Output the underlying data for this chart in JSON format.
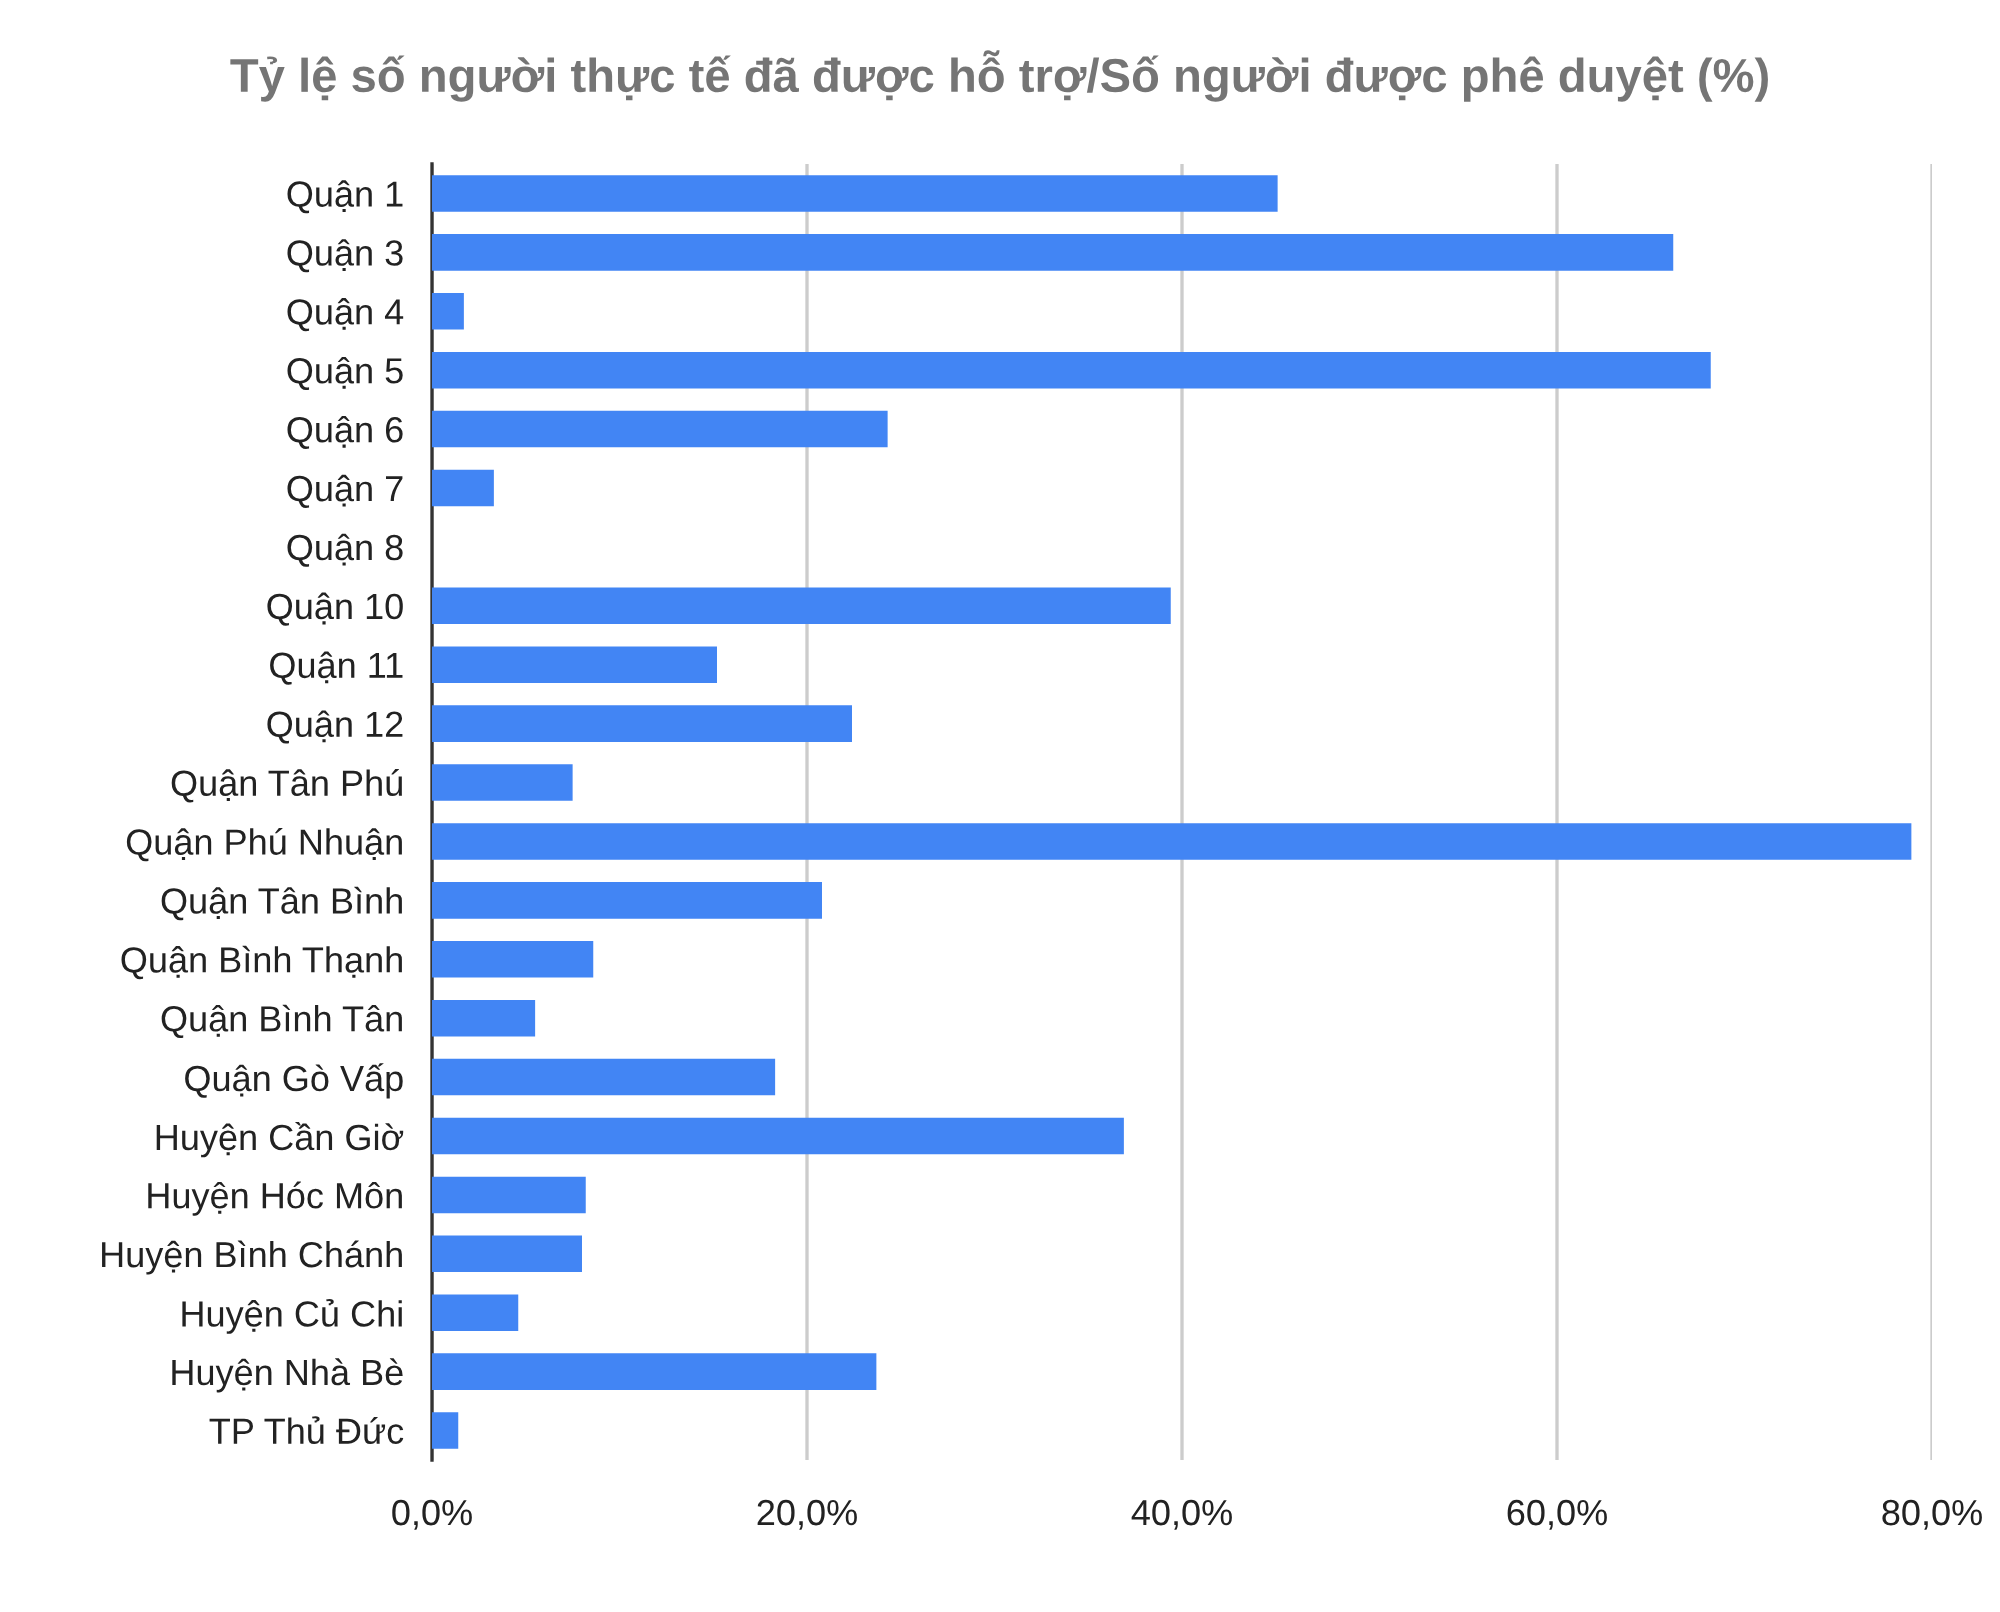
{
  "chart_data": {
    "type": "bar",
    "orientation": "horizontal",
    "title": "Tỷ lệ số người thực tế đã được hỗ trợ/Số người được phê duyệt (%)",
    "categories": [
      "Quận 1",
      "Quận 3",
      "Quận 4",
      "Quận 5",
      "Quận 6",
      "Quận 7",
      "Quận 8",
      "Quận 10",
      "Quận 11",
      "Quận 12",
      "Quận Tân Phú",
      "Quận Phú Nhuận",
      "Quận Tân Bình",
      "Quận Bình Thạnh",
      "Quận Bình Tân",
      "Quận Gò Vấp",
      "Huyện Cần Giờ",
      "Huyện Hóc Môn",
      "Huyện Bình Chánh",
      "Huyện Củ Chi",
      "Huyện Nhà Bè",
      "TP Thủ Đức"
    ],
    "values": [
      45.1,
      66.2,
      1.7,
      68.2,
      24.3,
      3.3,
      0,
      39.4,
      15.2,
      22.4,
      7.5,
      78.9,
      20.8,
      8.6,
      5.5,
      18.3,
      36.9,
      8.2,
      8.0,
      4.6,
      23.7,
      1.4
    ],
    "color": "#4285f4",
    "xlim": [
      0,
      80
    ],
    "xticks": [
      {
        "value": 0,
        "label": "0,0%"
      },
      {
        "value": 20,
        "label": "20,0%"
      },
      {
        "value": 40,
        "label": "40,0%"
      },
      {
        "value": 60,
        "label": "60,0%"
      },
      {
        "value": 80,
        "label": "80,0%"
      }
    ],
    "grid": "x"
  }
}
